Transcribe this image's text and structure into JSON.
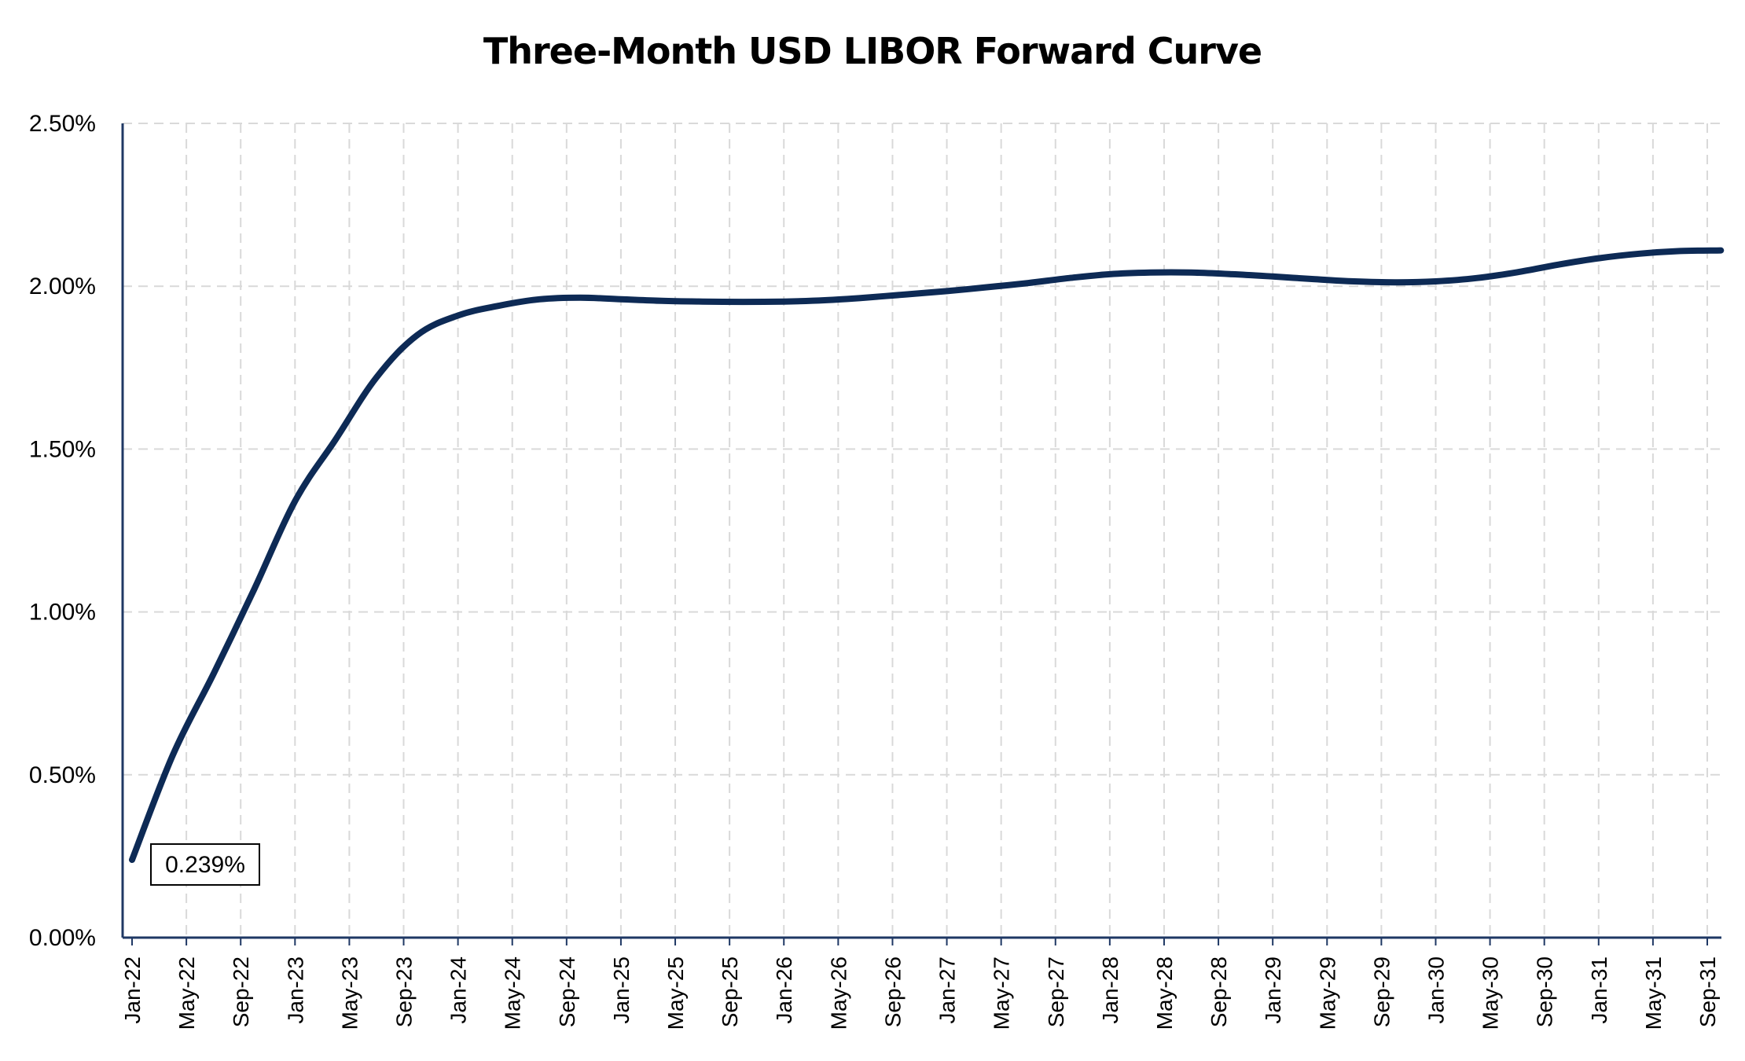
{
  "chart_data": {
    "type": "line",
    "title": "Three-Month USD LIBOR Forward Curve",
    "xlabel": "",
    "ylabel": "",
    "ylim": [
      0,
      2.5
    ],
    "y_ticks": [
      "0.00%",
      "0.50%",
      "1.00%",
      "1.50%",
      "2.00%",
      "2.50%"
    ],
    "x_ticks": [
      "Jan-22",
      "May-22",
      "Sep-22",
      "Jan-23",
      "May-23",
      "Sep-23",
      "Jan-24",
      "May-24",
      "Sep-24",
      "Jan-25",
      "May-25",
      "Sep-25",
      "Jan-26",
      "May-26",
      "Sep-26",
      "Jan-27",
      "May-27",
      "Sep-27",
      "Jan-28",
      "May-28",
      "Sep-28",
      "Jan-29",
      "May-29",
      "Sep-29",
      "Jan-30",
      "May-30",
      "Sep-30",
      "Jan-31",
      "May-31",
      "Sep-31"
    ],
    "grid": true,
    "legend": "none",
    "line_color": "#0d2a55",
    "series": [
      {
        "x": [
          "Jan-22",
          "Apr-22",
          "Jul-22",
          "Oct-22",
          "Jan-23",
          "Apr-23",
          "Jul-23",
          "Oct-23",
          "Jan-24",
          "Apr-24",
          "Jul-24",
          "Oct-24",
          "Jan-25",
          "Apr-25",
          "Jul-25",
          "Oct-25",
          "Jan-26",
          "Apr-26",
          "Jul-26",
          "Oct-26",
          "Jan-27",
          "Apr-27",
          "Jul-27",
          "Oct-27",
          "Jan-28",
          "Apr-28",
          "Jul-28",
          "Oct-28",
          "Jan-29",
          "Apr-29",
          "Jul-29",
          "Oct-29",
          "Jan-30",
          "Apr-30",
          "Jul-30",
          "Oct-30",
          "Jan-31",
          "Apr-31",
          "Jul-31",
          "Oct-31"
        ],
        "values": [
          0.239,
          0.56,
          0.81,
          1.07,
          1.34,
          1.53,
          1.72,
          1.85,
          1.91,
          1.94,
          1.96,
          1.965,
          1.96,
          1.955,
          1.953,
          1.952,
          1.953,
          1.957,
          1.965,
          1.975,
          1.985,
          1.997,
          2.01,
          2.025,
          2.037,
          2.042,
          2.042,
          2.037,
          2.03,
          2.022,
          2.015,
          2.012,
          2.015,
          2.025,
          2.043,
          2.066,
          2.086,
          2.1,
          2.108,
          2.11
        ]
      }
    ],
    "data_label": "0.239%"
  }
}
